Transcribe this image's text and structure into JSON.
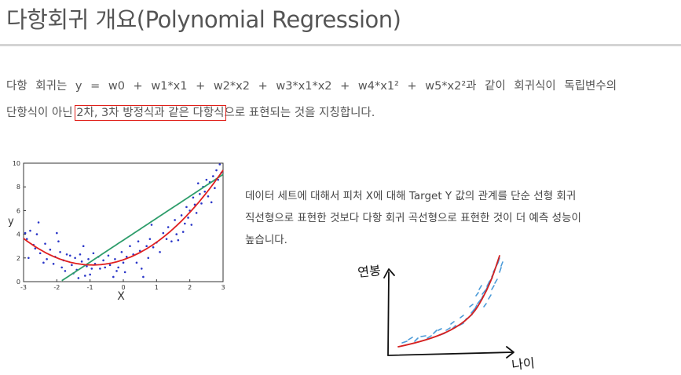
{
  "title": "다항회귀 개요(Polynomial Regression)",
  "paragraph": {
    "line1": "다항 회귀는 y = w0 + w1*x1 + w2*x2 + w3*x1*x2 + w4*x1² + w5*x2²과 같이 회귀식이 독립변수의",
    "line2_before": "단항식이 아닌 ",
    "line2_highlight": "2차, 3차 방정식과 같은 다항식",
    "line2_after": "으로 표현되는 것을 지칭합니다."
  },
  "description": {
    "line1": "데이터 세트에 대해서 피처 X에 대해 Target Y 값의 관계를 단순 선형 회귀",
    "line2": "직선형으로 표현한 것보다 다항 회귀 곡선형으로 표현한 것이 더 예측 성능이",
    "line3": "높습니다."
  },
  "chart_data": {
    "type": "scatter",
    "xlabel": "X",
    "ylabel": "y",
    "xlim": [
      -3,
      3
    ],
    "ylim": [
      0,
      10
    ],
    "x_ticks": [
      "-3",
      "-2",
      "-1",
      "0",
      "1",
      "2",
      "3"
    ],
    "y_ticks": [
      "0",
      "2",
      "4",
      "6",
      "8",
      "10"
    ],
    "points": [
      [
        -2.95,
        4.1
      ],
      [
        -2.9,
        3.6
      ],
      [
        -2.85,
        2.0
      ],
      [
        -2.8,
        4.3
      ],
      [
        -2.7,
        3.1
      ],
      [
        -2.65,
        2.8
      ],
      [
        -2.6,
        4.0
      ],
      [
        -2.55,
        5.0
      ],
      [
        -2.5,
        2.4
      ],
      [
        -2.4,
        1.6
      ],
      [
        -2.35,
        3.2
      ],
      [
        -2.3,
        1.9
      ],
      [
        -2.2,
        2.7
      ],
      [
        -2.1,
        1.5
      ],
      [
        -2.05,
        2.1
      ],
      [
        -2.0,
        4.1
      ],
      [
        -1.95,
        3.4
      ],
      [
        -1.9,
        2.5
      ],
      [
        -1.85,
        1.2
      ],
      [
        -1.8,
        1.8
      ],
      [
        -1.75,
        0.9
      ],
      [
        -1.7,
        2.3
      ],
      [
        -1.6,
        2.2
      ],
      [
        -1.55,
        1.4
      ],
      [
        -1.5,
        0.7
      ],
      [
        -1.45,
        2.0
      ],
      [
        -1.4,
        1.0
      ],
      [
        -1.35,
        0.3
      ],
      [
        -1.3,
        2.3
      ],
      [
        -1.25,
        1.7
      ],
      [
        -1.2,
        3.0
      ],
      [
        -1.15,
        0.5
      ],
      [
        -1.1,
        1.3
      ],
      [
        -1.05,
        1.9
      ],
      [
        -1.0,
        0.6
      ],
      [
        -0.95,
        1.1
      ],
      [
        -0.9,
        2.4
      ],
      [
        -0.85,
        1.5
      ],
      [
        -0.75,
        2.1
      ],
      [
        -0.7,
        1.1
      ],
      [
        -0.6,
        1.8
      ],
      [
        -0.55,
        1.2
      ],
      [
        -0.45,
        2.2
      ],
      [
        -0.4,
        1.4
      ],
      [
        -0.3,
        0.4
      ],
      [
        -0.25,
        1.9
      ],
      [
        -0.2,
        0.9
      ],
      [
        -0.15,
        1.2
      ],
      [
        -0.05,
        2.5
      ],
      [
        0.0,
        1.6
      ],
      [
        0.05,
        0.8
      ],
      [
        0.1,
        2.1
      ],
      [
        0.2,
        3.0
      ],
      [
        0.3,
        2.3
      ],
      [
        0.4,
        1.6
      ],
      [
        0.45,
        3.4
      ],
      [
        0.5,
        2.6
      ],
      [
        0.55,
        1.1
      ],
      [
        0.6,
        0.4
      ],
      [
        0.7,
        3.0
      ],
      [
        0.75,
        2.0
      ],
      [
        0.8,
        3.6
      ],
      [
        0.85,
        4.8
      ],
      [
        0.9,
        2.9
      ],
      [
        1.0,
        3.3
      ],
      [
        1.1,
        2.5
      ],
      [
        1.2,
        4.1
      ],
      [
        1.3,
        3.6
      ],
      [
        1.35,
        4.6
      ],
      [
        1.45,
        3.4
      ],
      [
        1.55,
        5.2
      ],
      [
        1.6,
        4.0
      ],
      [
        1.65,
        3.5
      ],
      [
        1.75,
        5.6
      ],
      [
        1.8,
        4.2
      ],
      [
        1.85,
        4.9
      ],
      [
        1.9,
        6.3
      ],
      [
        1.95,
        5.4
      ],
      [
        2.0,
        6.0
      ],
      [
        2.05,
        4.8
      ],
      [
        2.1,
        7.1
      ],
      [
        2.15,
        6.5
      ],
      [
        2.2,
        5.8
      ],
      [
        2.25,
        8.3
      ],
      [
        2.3,
        7.4
      ],
      [
        2.35,
        6.6
      ],
      [
        2.4,
        8.0
      ],
      [
        2.45,
        7.6
      ],
      [
        2.5,
        8.6
      ],
      [
        2.55,
        7.2
      ],
      [
        2.6,
        8.4
      ],
      [
        2.65,
        6.7
      ],
      [
        2.7,
        8.9
      ],
      [
        2.75,
        7.9
      ],
      [
        2.8,
        9.4
      ],
      [
        2.85,
        8.6
      ],
      [
        2.9,
        9.9
      ],
      [
        2.95,
        9.2
      ]
    ],
    "linear_fit": {
      "intercept": 3.5,
      "slope": 1.85,
      "color": "#2e9d6b"
    },
    "poly_fit": {
      "a": 0.52,
      "b": 0.96,
      "c": 1.85,
      "color": "#e02020"
    },
    "point_color": "#2a36c8"
  },
  "sketch": {
    "y_axis_label": "연봉",
    "x_axis_label": "나이",
    "curve_color": "#d42020",
    "mark_color": "#4a9ad8"
  },
  "colors": {
    "highlight_box": "#e0201a",
    "rule": "#d4d4d4"
  }
}
